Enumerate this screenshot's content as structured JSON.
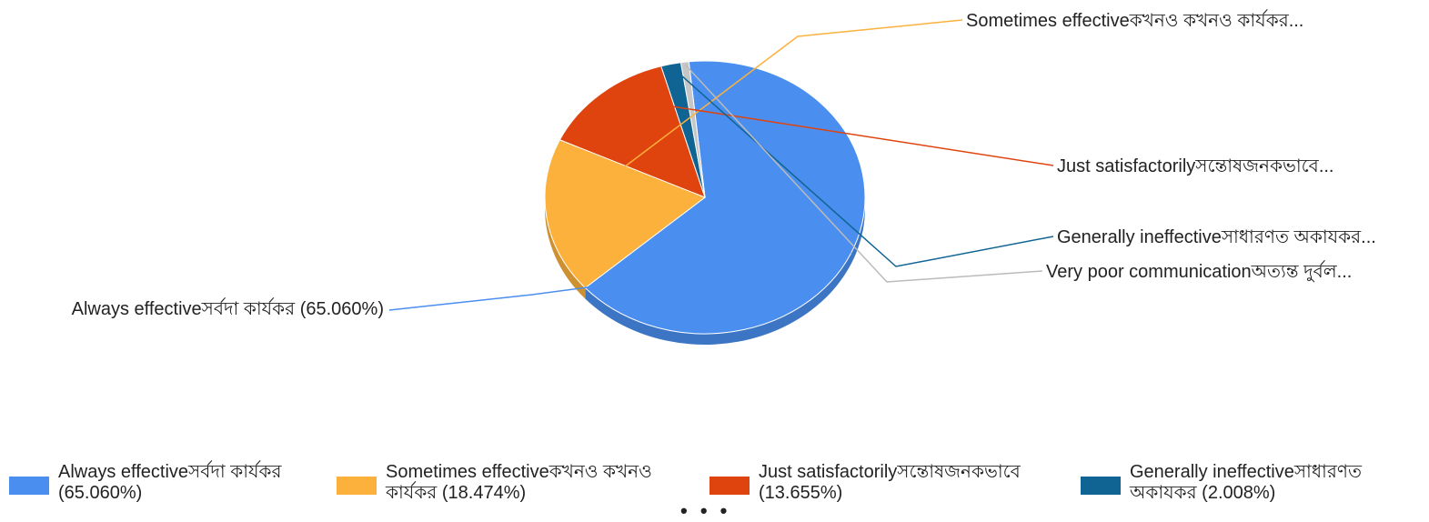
{
  "chart_data": {
    "type": "pie",
    "slices": [
      {
        "label": "Always effectiveসর্বদা কার্যকর",
        "percent": 65.06,
        "color": "#4a8ff0",
        "callout": "Always effectiveসর্বদা কার্যকর (65.060%)",
        "legend_line1": "Always effectiveসর্বদা কার্যকর",
        "legend_line2": "(65.060%)"
      },
      {
        "label": "Sometimes effectiveকখনও কখনও কার্যকর",
        "percent": 18.474,
        "color": "#fbb13c",
        "callout": "Sometimes effectiveকখনও কখনও কার্যকর...",
        "legend_line1": "Sometimes effectiveকখনও কখনও",
        "legend_line2": "কার্যকর (18.474%)"
      },
      {
        "label": "Just satisfactorilyসন্তোষজনকভাবে",
        "percent": 13.655,
        "color": "#e0440e",
        "callout": "Just satisfactorilyসন্তোষজনকভাবে...",
        "legend_line1": "Just satisfactorilyসন্তোষজনকভাবে",
        "legend_line2": "(13.655%)"
      },
      {
        "label": "Generally ineffectiveসাধারণত অকাযকর",
        "percent": 2.008,
        "color": "#0f6493",
        "callout": "Generally ineffectiveসাধারণত অকাযকর...",
        "legend_line1": "Generally ineffectiveসাধারণত",
        "legend_line2": "অকাযকর (2.008%)"
      },
      {
        "label": "Very poor communicationঅত্যন্ত দুর্বল",
        "percent": 0.803,
        "color": "#c6c6c6",
        "callout": "Very poor communicationঅত্যন্ত দুর্বল..."
      }
    ],
    "legend": {
      "placement": "bottom",
      "more_indicator": "• • •"
    },
    "style": "3d-pie"
  }
}
